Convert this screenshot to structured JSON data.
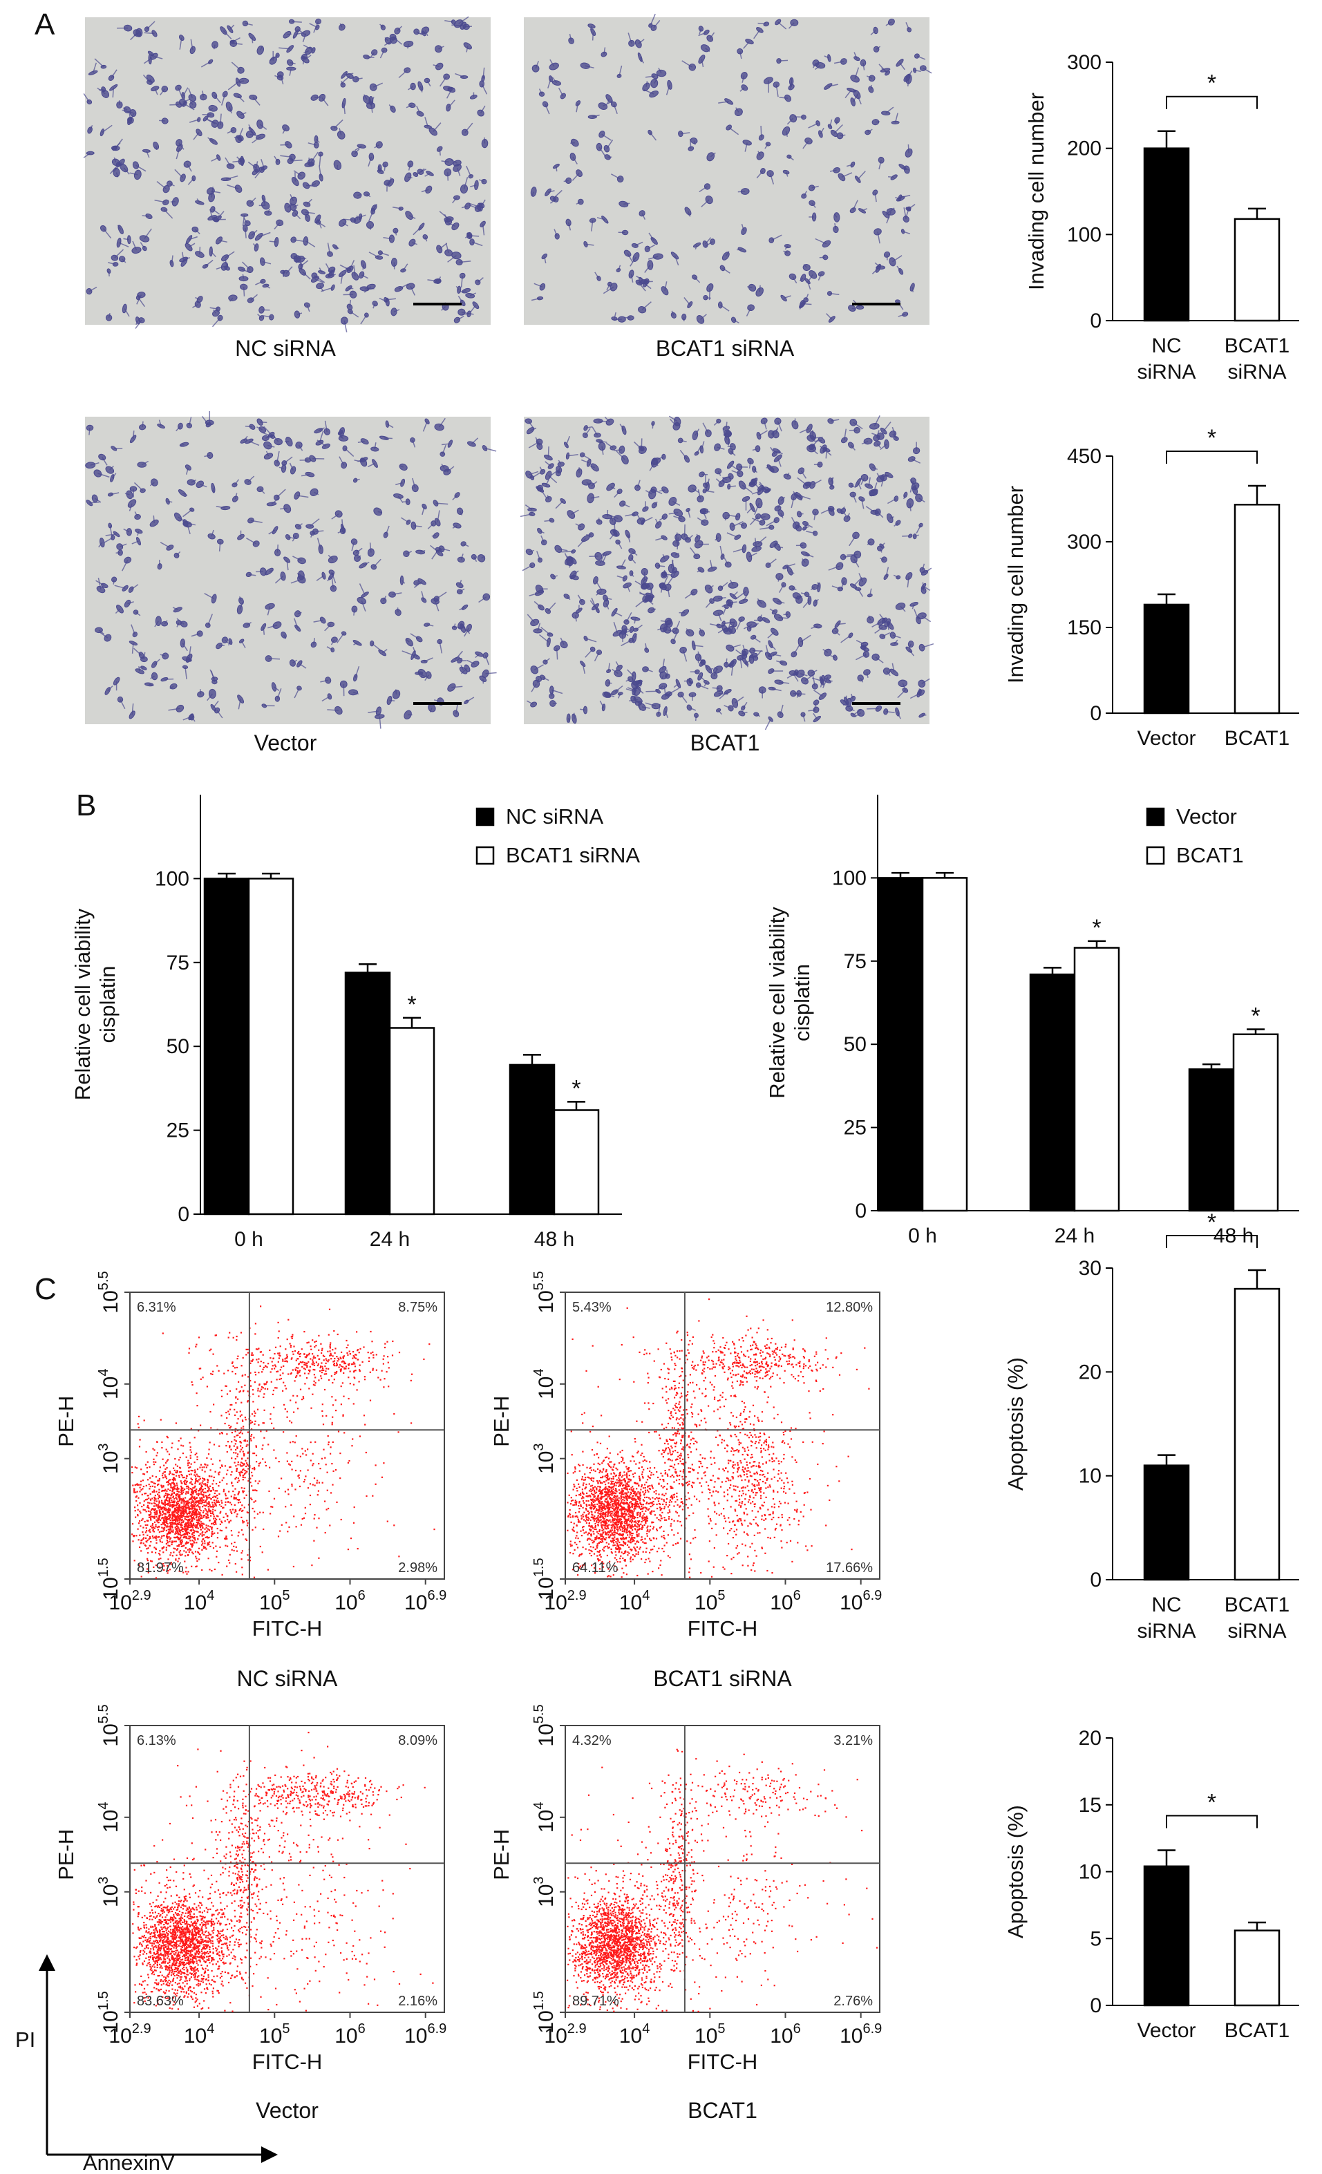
{
  "panel_labels": {
    "a": "A",
    "b": "B",
    "c": "C"
  },
  "colors": {
    "black_bar": "#000000",
    "white_bar": "#ffffff",
    "dots": "#ff1a1a",
    "micrograph_bg": "#d4d5d2",
    "cells": "#4b4a8f"
  },
  "micrographs": [
    {
      "caption": "NC siRNA",
      "density": 380
    },
    {
      "caption": "BCAT1 siRNA",
      "density": 230
    },
    {
      "caption": "Vector",
      "density": 300
    },
    {
      "caption": "BCAT1",
      "density": 560
    }
  ],
  "flow": {
    "xlabel": "FITC-H",
    "ylabel": "PE-H",
    "x_ticks": [
      {
        "base": "10",
        "exp": "2.9"
      },
      {
        "base": "10",
        "exp": "4"
      },
      {
        "base": "10",
        "exp": "5"
      },
      {
        "base": "10",
        "exp": "6"
      },
      {
        "base": "10",
        "exp": "6.9"
      }
    ],
    "y_ticks": [
      {
        "base": "10",
        "exp": "5.5"
      },
      {
        "base": "10",
        "exp": "4"
      },
      {
        "base": "10",
        "exp": "3"
      },
      {
        "base": "10",
        "exp": "1.5"
      }
    ],
    "plots": [
      {
        "caption": "NC siRNA",
        "ul": "6.31%",
        "ur": "8.75%",
        "ll": "81.97%",
        "lr": "2.98%"
      },
      {
        "caption": "BCAT1 siRNA",
        "ul": "5.43%",
        "ur": "12.80%",
        "ll": "64.11%",
        "lr": "17.66%"
      },
      {
        "caption": "Vector",
        "ul": "6.13%",
        "ur": "8.09%",
        "ll": "83.63%",
        "lr": "2.16%"
      },
      {
        "caption": "BCAT1",
        "ul": "4.32%",
        "ur": "3.21%",
        "ll": "89.71%",
        "lr": "2.76%"
      }
    ]
  },
  "axis_arrows": {
    "y": "PI",
    "x": "AnnexinV"
  },
  "chart_data": [
    {
      "id": "A1",
      "type": "bar",
      "categories": [
        [
          "NC",
          "siRNA"
        ],
        [
          "BCAT1",
          "siRNA"
        ]
      ],
      "values": [
        200,
        118
      ],
      "errors": [
        20,
        12
      ],
      "ylabel": "Invading cell number",
      "ylim": [
        0,
        300
      ],
      "yticks": [
        0,
        100,
        200,
        300
      ],
      "significance": "*"
    },
    {
      "id": "A2",
      "type": "bar",
      "categories": [
        [
          "Vector"
        ],
        [
          "BCAT1"
        ]
      ],
      "values": [
        190,
        365
      ],
      "errors": [
        18,
        33
      ],
      "ylabel": "Invading cell number",
      "ylim": [
        0,
        450
      ],
      "yticks": [
        0,
        150,
        300,
        450
      ],
      "significance": "*"
    },
    {
      "id": "B1",
      "type": "bar",
      "categories": [
        "0 h",
        "24 h",
        "48 h"
      ],
      "ylabel": "Relative cell viability cisplatin",
      "ylim": [
        0,
        125
      ],
      "yticks": [
        0,
        25,
        50,
        75,
        100
      ],
      "series": [
        {
          "name": "NC siRNA",
          "values": [
            100,
            72,
            44.5
          ],
          "errors": [
            1.5,
            2.5,
            3
          ]
        },
        {
          "name": "BCAT1 siRNA",
          "values": [
            100,
            55.5,
            31
          ],
          "errors": [
            1.5,
            3,
            2.5
          ],
          "stars": [
            "",
            "*",
            "*"
          ]
        }
      ]
    },
    {
      "id": "B2",
      "type": "bar",
      "categories": [
        "0 h",
        "24 h",
        "48 h"
      ],
      "ylabel": "Relative cell viability cisplatin",
      "ylim": [
        0,
        125
      ],
      "yticks": [
        0,
        25,
        50,
        75,
        100
      ],
      "series": [
        {
          "name": "Vector",
          "values": [
            100,
            71,
            42.5
          ],
          "errors": [
            1.5,
            2,
            1.5
          ]
        },
        {
          "name": "BCAT1",
          "values": [
            100,
            79,
            53
          ],
          "errors": [
            1.5,
            2,
            1.5
          ],
          "stars": [
            "",
            "*",
            "*"
          ]
        }
      ]
    },
    {
      "id": "C1",
      "type": "bar",
      "categories": [
        [
          "NC",
          "siRNA"
        ],
        [
          "BCAT1",
          "siRNA"
        ]
      ],
      "values": [
        11,
        28
      ],
      "errors": [
        1,
        1.8
      ],
      "ylabel": "Apoptosis (%)",
      "ylim": [
        0,
        30
      ],
      "yticks": [
        0,
        10,
        20,
        30
      ],
      "significance": "*"
    },
    {
      "id": "C2",
      "type": "bar",
      "categories": [
        [
          "Vector"
        ],
        [
          "BCAT1"
        ]
      ],
      "values": [
        10.4,
        5.6
      ],
      "errors": [
        1.2,
        0.6
      ],
      "ylabel": "Apoptosis (%)",
      "ylim": [
        0,
        20
      ],
      "yticks": [
        0,
        5,
        10,
        15,
        20
      ],
      "significance": "*"
    }
  ]
}
